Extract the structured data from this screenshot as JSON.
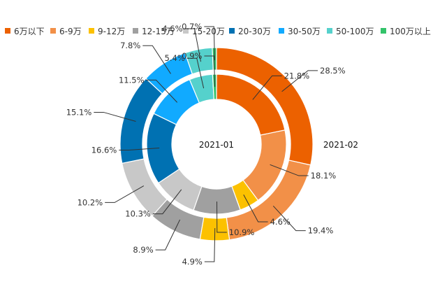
{
  "chart_data": {
    "type": "pie",
    "title": "",
    "categories": [
      "6万以下",
      "6-9万",
      "9-12万",
      "12-15万",
      "15-20万",
      "20-30万",
      "30-50万",
      "50-100万",
      "100万以上"
    ],
    "colors": [
      "#ec6100",
      "#f29048",
      "#fcc100",
      "#a0a0a0",
      "#c8c8c8",
      "#0071b2",
      "#11aaff",
      "#55d1cc",
      "#33c36a"
    ],
    "series": [
      {
        "name": "2021-01",
        "ring": "inner",
        "values": [
          21.8,
          18.1,
          4.6,
          10.9,
          10.3,
          16.6,
          11.5,
          5.4,
          0.9
        ],
        "labels": [
          "21.8%",
          "18.1%",
          "4.6%",
          "10.9%",
          "10.3%",
          "16.6%",
          "11.5%",
          "5.4%",
          "0.9%"
        ]
      },
      {
        "name": "2021-02",
        "ring": "outer",
        "values": [
          28.5,
          19.4,
          4.9,
          8.9,
          10.2,
          15.1,
          7.8,
          4.6,
          0.7
        ],
        "labels": [
          "28.5%",
          "19.4%",
          "4.9%",
          "8.9%",
          "10.2%",
          "15.1%",
          "7.8%",
          "4.6%",
          "0.7%"
        ]
      }
    ],
    "legend_position": "top"
  }
}
